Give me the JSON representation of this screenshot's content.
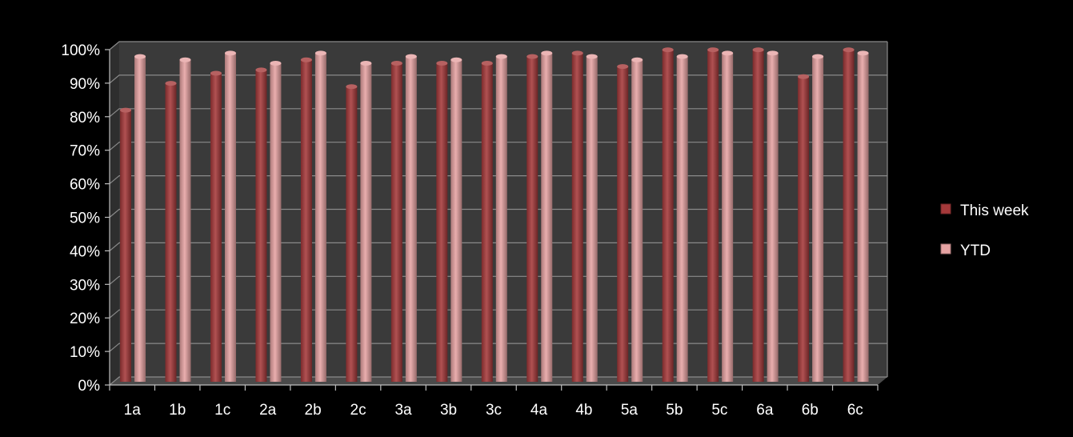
{
  "chart_data": {
    "type": "bar",
    "title": "",
    "xlabel": "",
    "ylabel": "",
    "ylim": [
      0,
      100
    ],
    "y_ticks": [
      "0%",
      "10%",
      "20%",
      "30%",
      "40%",
      "50%",
      "60%",
      "70%",
      "80%",
      "90%",
      "100%"
    ],
    "categories": [
      "1a",
      "1b",
      "1c",
      "2a",
      "2b",
      "2c",
      "3a",
      "3b",
      "3c",
      "4a",
      "4b",
      "5a",
      "5b",
      "5c",
      "6a",
      "6b",
      "6c"
    ],
    "series": [
      {
        "name": "This week",
        "color": "#a5393a",
        "values": [
          81,
          89,
          92,
          93,
          96,
          88,
          95,
          95,
          95,
          97,
          98,
          94,
          99,
          99,
          99,
          91,
          99
        ]
      },
      {
        "name": "YTD",
        "color": "#e6a3a3",
        "values": [
          97,
          96,
          98,
          95,
          98,
          95,
          97,
          96,
          97,
          98,
          97,
          96,
          97,
          98,
          98,
          97,
          98
        ]
      }
    ],
    "grid": true,
    "legend_position": "right",
    "style": "3d-columns",
    "background": "#000000",
    "plot_background": "#3a3a3a",
    "grid_color": "#8a8a8a",
    "text_color": "#ffffff"
  }
}
